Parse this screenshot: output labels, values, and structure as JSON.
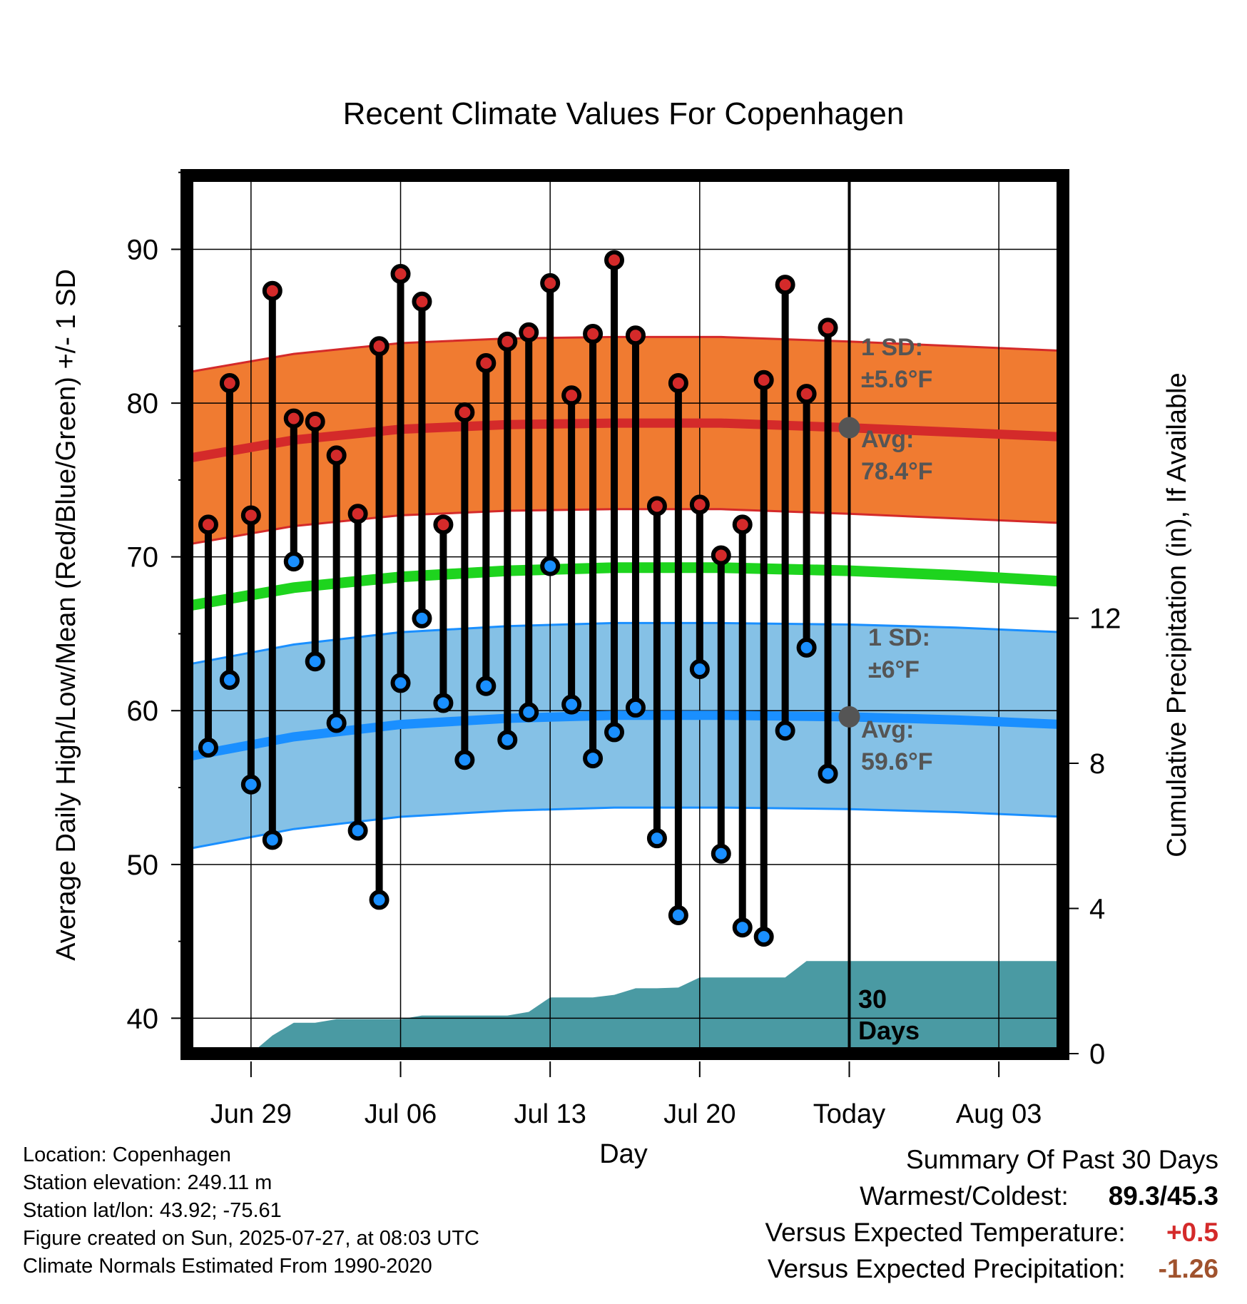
{
  "chart_data": {
    "type": "line",
    "title": "Recent Climate Values For Copenhagen",
    "xlabel": "Day",
    "ylabel": "Average Daily High/Low/Mean (Red/Blue/Green) +/- 1 SD",
    "y2label": "Cumulative Precipitation (in), If Available",
    "x_tick_labels": [
      "Jun 29",
      "Jul 06",
      "Jul 13",
      "Jul 20",
      "Today",
      "Aug 03"
    ],
    "y_ticks": [
      40,
      50,
      60,
      70,
      80,
      90
    ],
    "y2_ticks": [
      0,
      4,
      8,
      12
    ],
    "ylim": [
      37.7,
      94.8
    ],
    "y2lim": [
      0,
      24.2
    ],
    "x_range_days": [
      "2025-06-26",
      "2025-08-06"
    ],
    "today": "2025-07-27",
    "grid": true,
    "observed": {
      "dates": [
        "2025-06-27",
        "2025-06-28",
        "2025-06-29",
        "2025-06-30",
        "2025-07-01",
        "2025-07-02",
        "2025-07-03",
        "2025-07-04",
        "2025-07-05",
        "2025-07-06",
        "2025-07-07",
        "2025-07-08",
        "2025-07-09",
        "2025-07-10",
        "2025-07-11",
        "2025-07-12",
        "2025-07-13",
        "2025-07-14",
        "2025-07-15",
        "2025-07-16",
        "2025-07-17",
        "2025-07-18",
        "2025-07-19",
        "2025-07-20",
        "2025-07-21",
        "2025-07-22",
        "2025-07-23",
        "2025-07-24",
        "2025-07-25",
        "2025-07-26"
      ],
      "high": [
        72.1,
        81.3,
        72.7,
        87.3,
        79.0,
        78.8,
        76.6,
        72.8,
        83.7,
        88.4,
        86.6,
        72.1,
        79.4,
        82.6,
        84.0,
        84.6,
        87.8,
        80.5,
        84.5,
        89.3,
        84.4,
        73.3,
        81.3,
        73.4,
        70.1,
        72.1,
        81.5,
        87.7,
        80.6,
        84.9
      ],
      "low": [
        57.6,
        62.0,
        55.2,
        51.6,
        69.7,
        63.2,
        59.2,
        52.2,
        47.7,
        61.8,
        66.0,
        60.5,
        56.8,
        61.6,
        58.1,
        59.9,
        69.4,
        60.4,
        56.9,
        58.6,
        60.2,
        51.7,
        46.7,
        62.7,
        50.7,
        45.9,
        45.3,
        58.7,
        64.1,
        55.9
      ]
    },
    "normals": {
      "dates": [
        "2025-06-26",
        "2025-07-01",
        "2025-07-06",
        "2025-07-11",
        "2025-07-16",
        "2025-07-21",
        "2025-07-27",
        "2025-08-01",
        "2025-08-06"
      ],
      "avg_high": [
        76.4,
        77.6,
        78.3,
        78.6,
        78.7,
        78.7,
        78.4,
        78.1,
        77.8
      ],
      "avg_low": [
        57.0,
        58.3,
        59.1,
        59.5,
        59.7,
        59.7,
        59.6,
        59.4,
        59.1
      ],
      "avg_mean": [
        66.8,
        68.0,
        68.7,
        69.1,
        69.3,
        69.3,
        69.1,
        68.8,
        68.4
      ],
      "high_sd": 5.6,
      "low_sd": 6.0
    },
    "precip": {
      "dates": [
        "2025-06-27",
        "2025-06-28",
        "2025-06-29",
        "2025-06-30",
        "2025-07-01",
        "2025-07-02",
        "2025-07-03",
        "2025-07-04",
        "2025-07-05",
        "2025-07-06",
        "2025-07-07",
        "2025-07-08",
        "2025-07-09",
        "2025-07-10",
        "2025-07-11",
        "2025-07-12",
        "2025-07-13",
        "2025-07-14",
        "2025-07-15",
        "2025-07-16",
        "2025-07-17",
        "2025-07-18",
        "2025-07-19",
        "2025-07-20",
        "2025-07-21",
        "2025-07-22",
        "2025-07-23",
        "2025-07-24",
        "2025-07-25",
        "2025-07-26",
        "2025-07-27",
        "2025-08-06"
      ],
      "cumulative": [
        0,
        0,
        0,
        0.5,
        0.85,
        0.85,
        0.95,
        0.95,
        0.95,
        0.95,
        1.05,
        1.05,
        1.05,
        1.05,
        1.05,
        1.15,
        1.55,
        1.55,
        1.55,
        1.62,
        1.8,
        1.8,
        1.82,
        2.1,
        2.1,
        2.1,
        2.1,
        2.1,
        2.55,
        2.55,
        2.55,
        2.55
      ]
    },
    "annotations": {
      "high_sd": "1 SD:",
      "high_sd_value": "±5.6°F",
      "high_avg": "Avg:",
      "high_avg_value": "78.4°F",
      "low_sd": "1 SD:",
      "low_sd_value": "±6°F",
      "low_avg": "Avg:",
      "low_avg_value": "59.6°F",
      "period_1": "30",
      "period_2": "Days"
    },
    "colors": {
      "high_band": "#f07b31",
      "high_line": "#d42a2a",
      "low_band": "#85c1e6",
      "low_line": "#1a8fff",
      "mean_line": "#1ed41e",
      "precip": "#4a9aa3",
      "high_marker": "#d42a2a",
      "low_marker": "#1a8fff",
      "annotation": "#555555"
    }
  },
  "footer": {
    "location": "Location: Copenhagen",
    "elevation": "Station elevation: 249.11 m",
    "latlon": "Station lat/lon: 43.92; -75.61",
    "created": "Figure created on Sun, 2025-07-27, at 08:03 UTC",
    "normals": "Climate Normals Estimated From 1990-2020"
  },
  "summary": {
    "title": "Summary Of Past 30 Days",
    "warmest_label": "Warmest/Coldest:",
    "warmest_value": "89.3/45.3",
    "temp_label": "Versus Expected Temperature:",
    "temp_value": "+0.5",
    "temp_color": "#d42a2a",
    "precip_label": "Versus Expected Precipitation:",
    "precip_value": "-1.26",
    "precip_color": "#a0522d"
  }
}
